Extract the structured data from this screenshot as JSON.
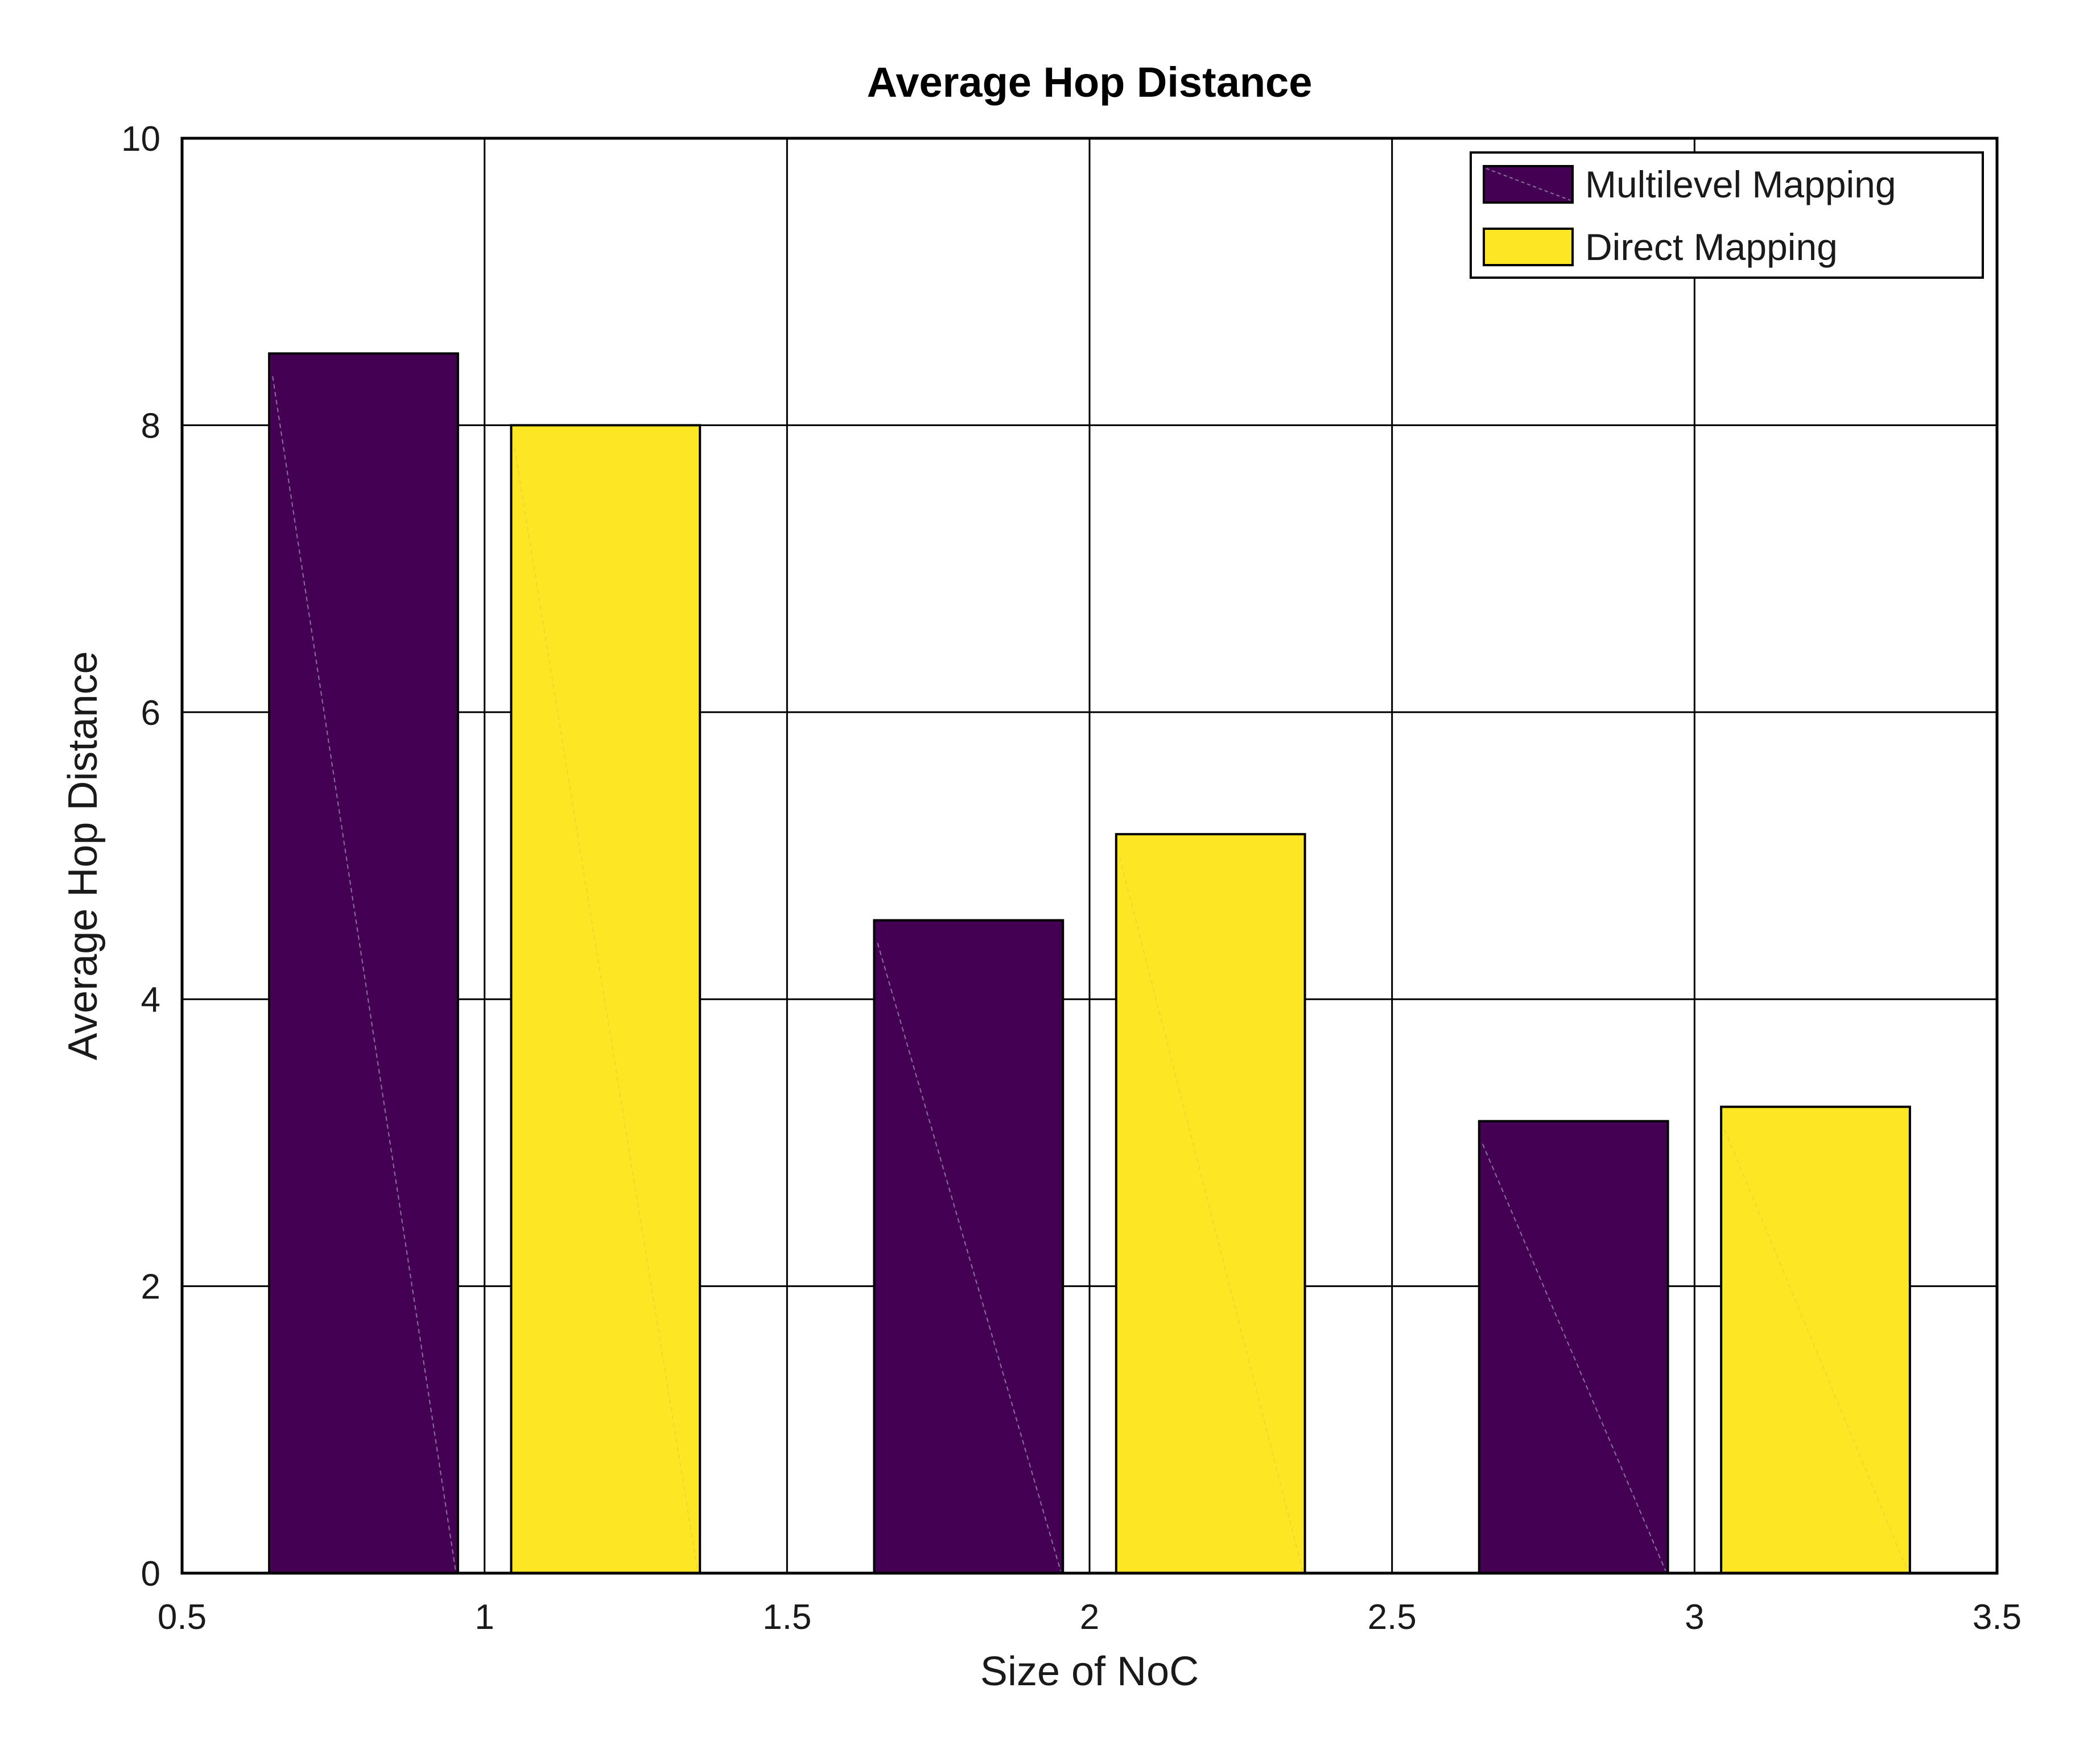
{
  "chart_data": {
    "type": "bar",
    "title": "Average Hop Distance",
    "xlabel": "Size of NoC",
    "ylabel": "Average Hop Distance",
    "xlim": [
      0.5,
      3.5
    ],
    "ylim": [
      0,
      10
    ],
    "x_ticks": [
      "0.5",
      "1",
      "1.5",
      "2",
      "2.5",
      "3",
      "3.5"
    ],
    "y_ticks": [
      "0",
      "2",
      "4",
      "6",
      "8",
      "10"
    ],
    "grid": true,
    "legend_position": "top-right",
    "x": [
      1,
      2,
      3
    ],
    "series": [
      {
        "name": "Multilevel Mapping",
        "color": "#440154",
        "values": [
          8.5,
          4.55,
          3.15
        ]
      },
      {
        "name": "Direct Mapping",
        "color": "#fde725",
        "values": [
          8.0,
          5.15,
          3.25
        ]
      }
    ]
  }
}
